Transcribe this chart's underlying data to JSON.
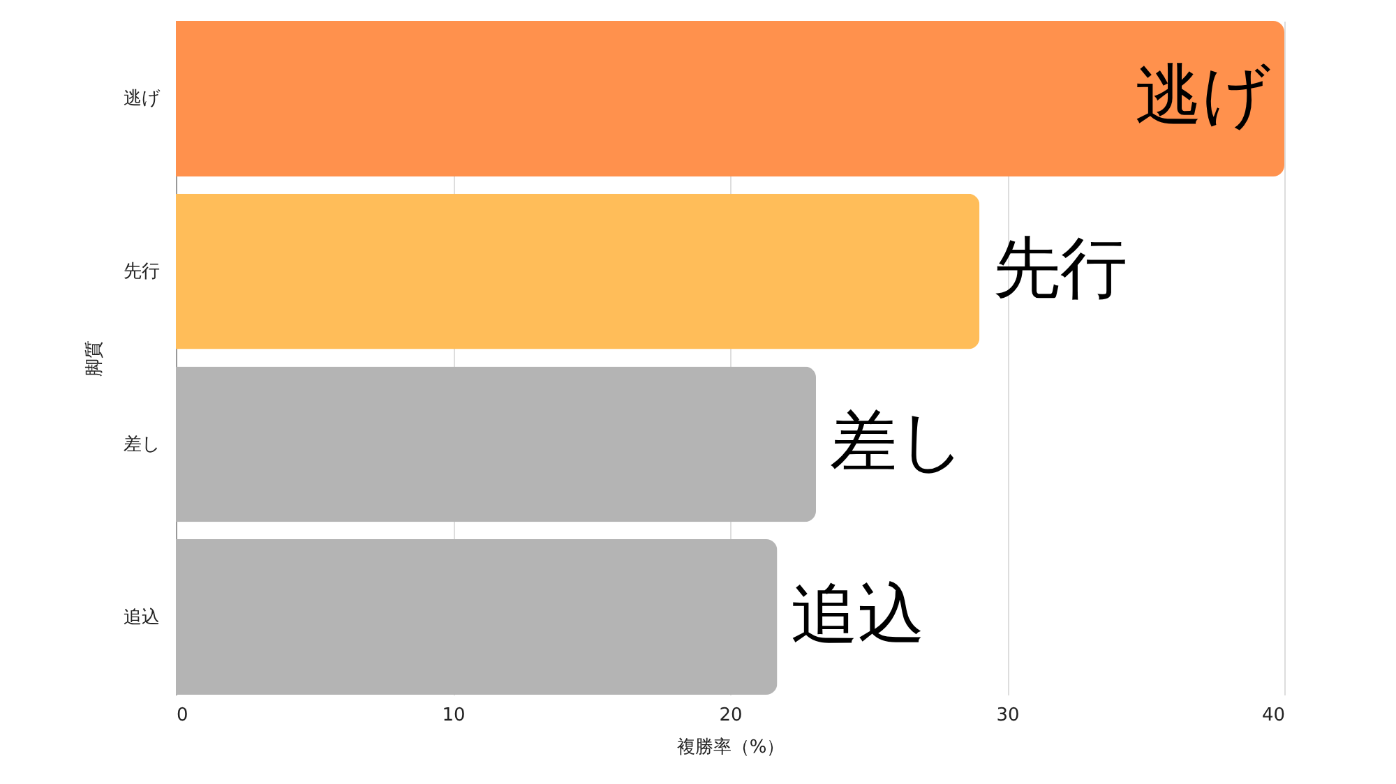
{
  "chart_data": {
    "type": "bar",
    "orientation": "horizontal",
    "categories": [
      "逃げ",
      "先行",
      "差し",
      "追込"
    ],
    "values": [
      40.0,
      29.0,
      23.1,
      21.7
    ],
    "colors": [
      "#ff914d",
      "#ffbd59",
      "#b4b4b4",
      "#b4b4b4"
    ],
    "xlabel": "複勝率（%）",
    "ylabel": "脚質",
    "xlim": [
      0,
      40
    ],
    "xticks": [
      0,
      10,
      20,
      30,
      40
    ],
    "grid": "x",
    "annotations": [
      {
        "text": "逃げ",
        "x": 40.0,
        "y": "逃げ"
      },
      {
        "text": "先行",
        "x": 29.0,
        "y": "先行"
      },
      {
        "text": "差し",
        "x": 23.1,
        "y": "差し"
      },
      {
        "text": "追込",
        "x": 21.7,
        "y": "追込"
      }
    ]
  }
}
